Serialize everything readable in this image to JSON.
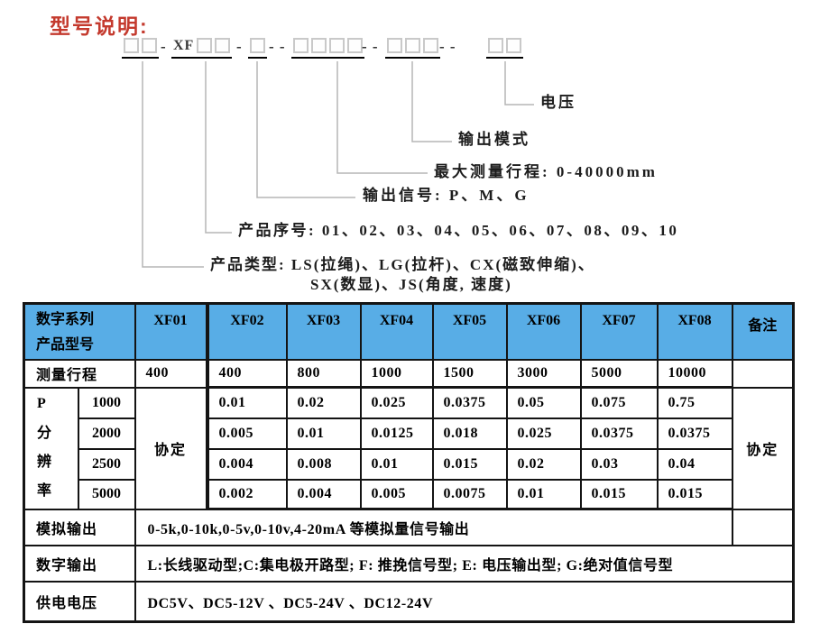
{
  "page": {
    "title": "型号说明:"
  },
  "colors": {
    "header_bg": "#58ade6",
    "title_red": "#c43a2e"
  },
  "diagram": {
    "code_groups": [
      {
        "prefix": "",
        "boxes": 2
      },
      {
        "prefix": "XF",
        "boxes": 2
      },
      {
        "prefix": "",
        "boxes": 1
      },
      {
        "prefix": "",
        "boxes": 4
      },
      {
        "prefix": "",
        "boxes": 3
      },
      {
        "prefix": "",
        "boxes": 2
      }
    ],
    "separators": [
      "-",
      "-",
      "- -",
      "- -",
      "- -"
    ],
    "callouts": {
      "voltage": "电压",
      "output_mode": "输出模式",
      "max_travel": "最大测量行程: 0-40000mm",
      "output_signal": "输出信号: P、M、G",
      "product_serial": "产品序号: 01、02、03、04、05、06、07、08、09、10",
      "product_type_line1": "产品类型: LS(拉绳)、LG(拉杆)、CX(磁致伸缩)、",
      "product_type_line2": "SX(数显)、JS(角度, 速度)"
    }
  },
  "table": {
    "header": {
      "model_label": "数字系列\n产品型号",
      "columns": [
        "XF01",
        "XF02",
        "XF03",
        "XF04",
        "XF05",
        "XF06",
        "XF07",
        "XF08"
      ],
      "remark": "备注"
    },
    "travel": {
      "label": "测量行程",
      "values": [
        "400",
        "400",
        "800",
        "1000",
        "1500",
        "3000",
        "5000",
        "10000"
      ],
      "remark": ""
    },
    "resolution": {
      "group_label": "P\n分\n辨\n率",
      "xf01": "协定",
      "remark": "协定",
      "rows": [
        {
          "sub": "1000",
          "values": [
            "0.01",
            "0.02",
            "0.025",
            "0.0375",
            "0.05",
            "0.075",
            "0.75"
          ]
        },
        {
          "sub": "2000",
          "values": [
            "0.005",
            "0.01",
            "0.0125",
            "0.018",
            "0.025",
            "0.0375",
            "0.0375"
          ]
        },
        {
          "sub": "2500",
          "values": [
            "0.004",
            "0.008",
            "0.01",
            "0.015",
            "0.02",
            "0.03",
            "0.04"
          ]
        },
        {
          "sub": "5000",
          "values": [
            "0.002",
            "0.004",
            "0.005",
            "0.0075",
            "0.01",
            "0.015",
            "0.015"
          ]
        }
      ]
    },
    "analog": {
      "label": "模拟输出",
      "value": "0-5k,0-10k,0-5v,0-10v,4-20mA 等模拟量信号输出",
      "remark": ""
    },
    "digital": {
      "label": "数字输出",
      "value": "L:长线驱动型;C:集电极开路型; F: 推挽信号型; E: 电压输出型; G:绝对值信号型"
    },
    "power": {
      "label": "供电电压",
      "value": "DC5V、DC5-12V 、DC5-24V 、DC12-24V"
    }
  }
}
